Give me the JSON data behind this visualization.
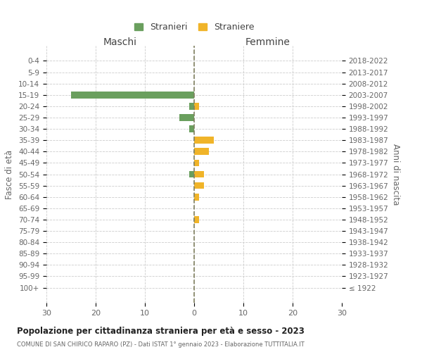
{
  "age_groups": [
    "0-4",
    "5-9",
    "10-14",
    "15-19",
    "20-24",
    "25-29",
    "30-34",
    "35-39",
    "40-44",
    "45-49",
    "50-54",
    "55-59",
    "60-64",
    "65-69",
    "70-74",
    "75-79",
    "80-84",
    "85-89",
    "90-94",
    "95-99",
    "100+"
  ],
  "birth_years": [
    "2018-2022",
    "2013-2017",
    "2008-2012",
    "2003-2007",
    "1998-2002",
    "1993-1997",
    "1988-1992",
    "1983-1987",
    "1978-1982",
    "1973-1977",
    "1968-1972",
    "1963-1967",
    "1958-1962",
    "1953-1957",
    "1948-1952",
    "1943-1947",
    "1938-1942",
    "1933-1937",
    "1928-1932",
    "1923-1927",
    "≤ 1922"
  ],
  "maschi": [
    0,
    0,
    0,
    25,
    1,
    3,
    1,
    0,
    0,
    0,
    1,
    0,
    0,
    0,
    0,
    0,
    0,
    0,
    0,
    0,
    0
  ],
  "femmine": [
    0,
    0,
    0,
    0,
    1,
    0,
    0,
    4,
    3,
    1,
    2,
    2,
    1,
    0,
    1,
    0,
    0,
    0,
    0,
    0,
    0
  ],
  "maschi_color": "#6a9f5e",
  "femmine_color": "#f0b429",
  "title": "Popolazione per cittadinanza straniera per età e sesso - 2023",
  "subtitle": "COMUNE DI SAN CHIRICO RAPARO (PZ) - Dati ISTAT 1° gennaio 2023 - Elaborazione TUTTITALIA.IT",
  "xlabel_left": "Maschi",
  "xlabel_right": "Femmine",
  "ylabel_left": "Fasce di età",
  "ylabel_right": "Anni di nascita",
  "legend_maschi": "Stranieri",
  "legend_femmine": "Straniere",
  "xlim": 30,
  "background_color": "#ffffff",
  "grid_color": "#cccccc",
  "center_line_color": "#808060"
}
